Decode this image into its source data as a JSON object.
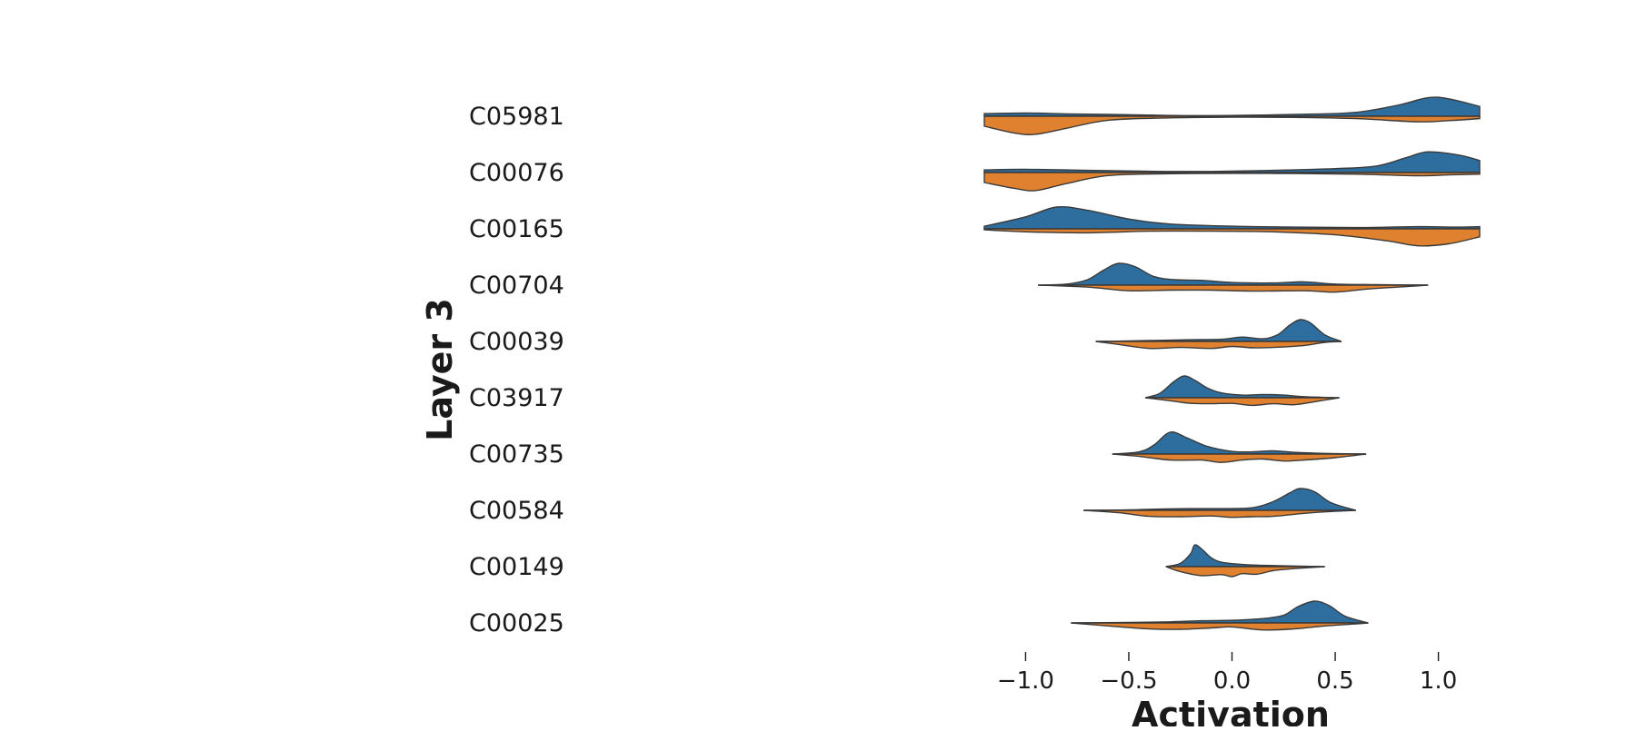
{
  "chart_data": {
    "type": "split-violin",
    "ylabel": "Layer 3",
    "xlabel": "Activation",
    "xlim": [
      -1.2,
      1.2
    ],
    "xticks": [
      -1.0,
      -0.5,
      0.0,
      0.5,
      1.0
    ],
    "xtick_labels": [
      "−1.0",
      "−0.5",
      "0.0",
      "0.5",
      "1.0"
    ],
    "colors": {
      "upper": "#2e6e9e",
      "lower": "#e0812f"
    },
    "grid": false,
    "legend": "none",
    "categories": [
      "C05981",
      "C00076",
      "C00165",
      "C00704",
      "C00039",
      "C03917",
      "C00735",
      "C00584",
      "C00149",
      "C00025"
    ],
    "violins": [
      {
        "category": "C05981",
        "range": [
          -1.2,
          1.2
        ],
        "upper": [
          [
            -1.2,
            0.12
          ],
          [
            -1.0,
            0.15
          ],
          [
            -0.8,
            0.11
          ],
          [
            -0.5,
            0.07
          ],
          [
            -0.2,
            0.03
          ],
          [
            0.1,
            0.05
          ],
          [
            0.4,
            0.1
          ],
          [
            0.6,
            0.18
          ],
          [
            0.8,
            0.5
          ],
          [
            0.95,
            0.85
          ],
          [
            1.05,
            0.8
          ],
          [
            1.2,
            0.45
          ]
        ],
        "lower": [
          [
            -1.2,
            0.5
          ],
          [
            -1.05,
            0.85
          ],
          [
            -0.95,
            0.9
          ],
          [
            -0.8,
            0.6
          ],
          [
            -0.6,
            0.2
          ],
          [
            -0.3,
            0.08
          ],
          [
            0.0,
            0.05
          ],
          [
            0.3,
            0.06
          ],
          [
            0.6,
            0.12
          ],
          [
            0.9,
            0.28
          ],
          [
            1.05,
            0.22
          ],
          [
            1.2,
            0.12
          ]
        ]
      },
      {
        "category": "C00076",
        "range": [
          -1.2,
          1.2
        ],
        "upper": [
          [
            -1.2,
            0.12
          ],
          [
            -1.0,
            0.15
          ],
          [
            -0.7,
            0.1
          ],
          [
            -0.4,
            0.06
          ],
          [
            -0.1,
            0.05
          ],
          [
            0.2,
            0.1
          ],
          [
            0.5,
            0.18
          ],
          [
            0.7,
            0.3
          ],
          [
            0.85,
            0.7
          ],
          [
            0.95,
            0.95
          ],
          [
            1.1,
            0.8
          ],
          [
            1.2,
            0.55
          ]
        ],
        "lower": [
          [
            -1.2,
            0.5
          ],
          [
            -1.05,
            0.8
          ],
          [
            -0.95,
            0.9
          ],
          [
            -0.8,
            0.55
          ],
          [
            -0.6,
            0.15
          ],
          [
            -0.3,
            0.06
          ],
          [
            0.0,
            0.04
          ],
          [
            0.3,
            0.05
          ],
          [
            0.6,
            0.08
          ],
          [
            0.9,
            0.16
          ],
          [
            1.05,
            0.12
          ],
          [
            1.2,
            0.08
          ]
        ]
      },
      {
        "category": "C00165",
        "range": [
          -1.2,
          1.2
        ],
        "upper": [
          [
            -1.2,
            0.12
          ],
          [
            -1.0,
            0.55
          ],
          [
            -0.85,
            1.0
          ],
          [
            -0.7,
            0.85
          ],
          [
            -0.5,
            0.45
          ],
          [
            -0.3,
            0.22
          ],
          [
            0.0,
            0.12
          ],
          [
            0.3,
            0.08
          ],
          [
            0.6,
            0.06
          ],
          [
            0.9,
            0.1
          ],
          [
            1.1,
            0.08
          ],
          [
            1.2,
            0.1
          ]
        ],
        "lower": [
          [
            -1.2,
            0.05
          ],
          [
            -1.0,
            0.15
          ],
          [
            -0.7,
            0.2
          ],
          [
            -0.4,
            0.12
          ],
          [
            -0.1,
            0.12
          ],
          [
            0.2,
            0.15
          ],
          [
            0.5,
            0.3
          ],
          [
            0.75,
            0.6
          ],
          [
            0.9,
            0.85
          ],
          [
            1.05,
            0.75
          ],
          [
            1.2,
            0.4
          ]
        ]
      },
      {
        "category": "C00704",
        "range": [
          -0.94,
          0.95
        ],
        "upper": [
          [
            -0.94,
            0.0
          ],
          [
            -0.8,
            0.05
          ],
          [
            -0.7,
            0.25
          ],
          [
            -0.62,
            0.7
          ],
          [
            -0.55,
            1.0
          ],
          [
            -0.47,
            0.85
          ],
          [
            -0.38,
            0.4
          ],
          [
            -0.28,
            0.25
          ],
          [
            -0.15,
            0.22
          ],
          [
            0.0,
            0.12
          ],
          [
            0.2,
            0.1
          ],
          [
            0.35,
            0.15
          ],
          [
            0.5,
            0.05
          ],
          [
            0.7,
            0.02
          ],
          [
            0.95,
            0.0
          ]
        ],
        "lower": [
          [
            -0.94,
            0.0
          ],
          [
            -0.7,
            0.1
          ],
          [
            -0.5,
            0.28
          ],
          [
            -0.3,
            0.25
          ],
          [
            -0.1,
            0.25
          ],
          [
            0.1,
            0.3
          ],
          [
            0.35,
            0.28
          ],
          [
            0.5,
            0.35
          ],
          [
            0.65,
            0.2
          ],
          [
            0.8,
            0.1
          ],
          [
            0.95,
            0.0
          ]
        ]
      },
      {
        "category": "C00039",
        "range": [
          -0.66,
          0.53
        ],
        "upper": [
          [
            -0.66,
            0.0
          ],
          [
            -0.5,
            0.02
          ],
          [
            -0.35,
            0.05
          ],
          [
            -0.2,
            0.08
          ],
          [
            -0.05,
            0.1
          ],
          [
            0.05,
            0.2
          ],
          [
            0.15,
            0.12
          ],
          [
            0.22,
            0.3
          ],
          [
            0.28,
            0.75
          ],
          [
            0.33,
            1.0
          ],
          [
            0.38,
            0.85
          ],
          [
            0.45,
            0.3
          ],
          [
            0.53,
            0.0
          ]
        ],
        "lower": [
          [
            -0.66,
            0.0
          ],
          [
            -0.55,
            0.15
          ],
          [
            -0.4,
            0.35
          ],
          [
            -0.25,
            0.3
          ],
          [
            -0.1,
            0.35
          ],
          [
            0.0,
            0.25
          ],
          [
            0.1,
            0.32
          ],
          [
            0.2,
            0.3
          ],
          [
            0.35,
            0.2
          ],
          [
            0.45,
            0.05
          ],
          [
            0.53,
            0.0
          ]
        ]
      },
      {
        "category": "C03917",
        "range": [
          -0.42,
          0.52
        ],
        "upper": [
          [
            -0.42,
            0.0
          ],
          [
            -0.35,
            0.2
          ],
          [
            -0.28,
            0.75
          ],
          [
            -0.23,
            1.0
          ],
          [
            -0.18,
            0.8
          ],
          [
            -0.12,
            0.45
          ],
          [
            -0.05,
            0.22
          ],
          [
            0.05,
            0.12
          ],
          [
            0.15,
            0.15
          ],
          [
            0.25,
            0.12
          ],
          [
            0.35,
            0.05
          ],
          [
            0.52,
            0.0
          ]
        ],
        "lower": [
          [
            -0.42,
            0.0
          ],
          [
            -0.3,
            0.15
          ],
          [
            -0.2,
            0.28
          ],
          [
            -0.1,
            0.3
          ],
          [
            0.0,
            0.28
          ],
          [
            0.1,
            0.38
          ],
          [
            0.2,
            0.3
          ],
          [
            0.3,
            0.35
          ],
          [
            0.4,
            0.2
          ],
          [
            0.52,
            0.0
          ]
        ]
      },
      {
        "category": "C00735",
        "range": [
          -0.58,
          0.65
        ],
        "upper": [
          [
            -0.58,
            0.0
          ],
          [
            -0.45,
            0.1
          ],
          [
            -0.38,
            0.4
          ],
          [
            -0.3,
            1.0
          ],
          [
            -0.22,
            0.75
          ],
          [
            -0.12,
            0.35
          ],
          [
            0.0,
            0.12
          ],
          [
            0.1,
            0.1
          ],
          [
            0.2,
            0.15
          ],
          [
            0.3,
            0.08
          ],
          [
            0.45,
            0.03
          ],
          [
            0.65,
            0.0
          ]
        ],
        "lower": [
          [
            -0.58,
            0.0
          ],
          [
            -0.45,
            0.12
          ],
          [
            -0.3,
            0.3
          ],
          [
            -0.15,
            0.3
          ],
          [
            -0.05,
            0.42
          ],
          [
            0.05,
            0.3
          ],
          [
            0.15,
            0.25
          ],
          [
            0.25,
            0.35
          ],
          [
            0.35,
            0.3
          ],
          [
            0.5,
            0.18
          ],
          [
            0.65,
            0.0
          ]
        ]
      },
      {
        "category": "C00584",
        "range": [
          -0.72,
          0.6
        ],
        "upper": [
          [
            -0.72,
            0.0
          ],
          [
            -0.5,
            0.02
          ],
          [
            -0.35,
            0.06
          ],
          [
            -0.2,
            0.08
          ],
          [
            -0.05,
            0.08
          ],
          [
            0.1,
            0.12
          ],
          [
            0.2,
            0.4
          ],
          [
            0.28,
            0.8
          ],
          [
            0.33,
            1.0
          ],
          [
            0.4,
            0.85
          ],
          [
            0.48,
            0.35
          ],
          [
            0.6,
            0.0
          ]
        ],
        "lower": [
          [
            -0.72,
            0.0
          ],
          [
            -0.55,
            0.12
          ],
          [
            -0.4,
            0.3
          ],
          [
            -0.25,
            0.32
          ],
          [
            -0.1,
            0.28
          ],
          [
            0.0,
            0.35
          ],
          [
            0.1,
            0.32
          ],
          [
            0.2,
            0.3
          ],
          [
            0.35,
            0.15
          ],
          [
            0.5,
            0.05
          ],
          [
            0.6,
            0.0
          ]
        ]
      },
      {
        "category": "C00149",
        "range": [
          -0.32,
          0.45
        ],
        "upper": [
          [
            -0.32,
            0.0
          ],
          [
            -0.25,
            0.15
          ],
          [
            -0.2,
            0.6
          ],
          [
            -0.18,
            1.0
          ],
          [
            -0.14,
            0.75
          ],
          [
            -0.1,
            0.4
          ],
          [
            -0.05,
            0.2
          ],
          [
            0.05,
            0.1
          ],
          [
            0.15,
            0.06
          ],
          [
            0.3,
            0.03
          ],
          [
            0.45,
            0.0
          ]
        ],
        "lower": [
          [
            -0.32,
            0.0
          ],
          [
            -0.25,
            0.25
          ],
          [
            -0.15,
            0.45
          ],
          [
            -0.05,
            0.4
          ],
          [
            0.0,
            0.5
          ],
          [
            0.05,
            0.35
          ],
          [
            0.12,
            0.38
          ],
          [
            0.2,
            0.2
          ],
          [
            0.3,
            0.1
          ],
          [
            0.45,
            0.0
          ]
        ]
      },
      {
        "category": "C00025",
        "range": [
          -0.78,
          0.66
        ],
        "upper": [
          [
            -0.78,
            0.0
          ],
          [
            -0.5,
            0.02
          ],
          [
            -0.3,
            0.05
          ],
          [
            -0.15,
            0.1
          ],
          [
            0.0,
            0.12
          ],
          [
            0.15,
            0.2
          ],
          [
            0.25,
            0.35
          ],
          [
            0.32,
            0.75
          ],
          [
            0.4,
            1.0
          ],
          [
            0.47,
            0.8
          ],
          [
            0.55,
            0.3
          ],
          [
            0.66,
            0.0
          ]
        ],
        "lower": [
          [
            -0.78,
            0.0
          ],
          [
            -0.6,
            0.15
          ],
          [
            -0.4,
            0.3
          ],
          [
            -0.25,
            0.32
          ],
          [
            -0.1,
            0.25
          ],
          [
            0.0,
            0.2
          ],
          [
            0.15,
            0.35
          ],
          [
            0.3,
            0.3
          ],
          [
            0.45,
            0.15
          ],
          [
            0.6,
            0.05
          ],
          [
            0.66,
            0.0
          ]
        ]
      }
    ]
  }
}
